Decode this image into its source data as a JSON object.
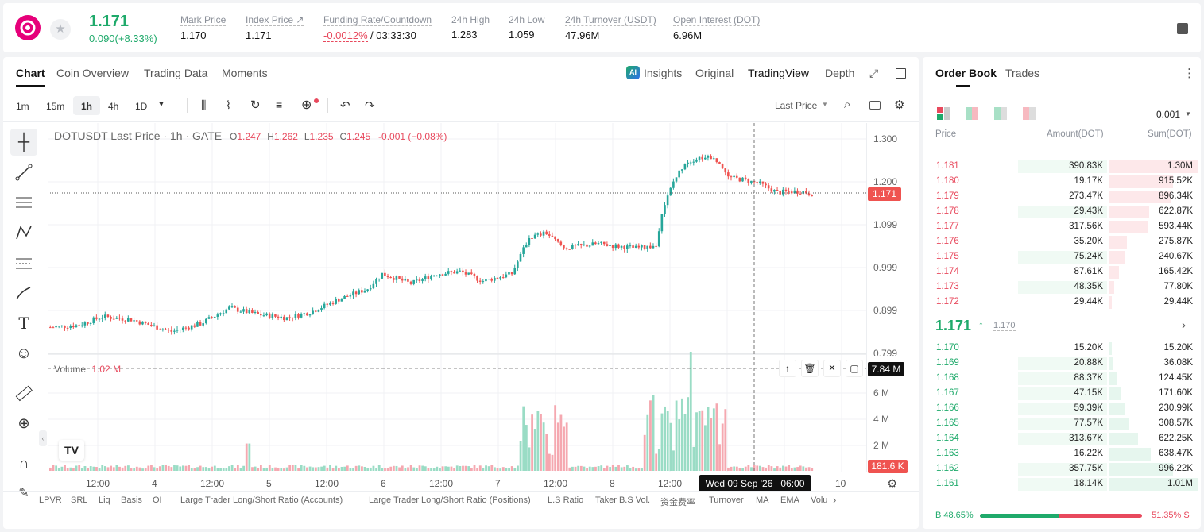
{
  "ticker": {
    "price": "1.171",
    "change": "0.090(+8.33%)",
    "stats": [
      {
        "label": "Mark Price",
        "value": "1.170"
      },
      {
        "label": "Index Price ↗",
        "value": "1.171"
      },
      {
        "label": "Funding Rate/Countdown",
        "value_red": "-0.0012%",
        "value": "/ 03:33:30"
      },
      {
        "label": "24h High",
        "value": "1.283"
      },
      {
        "label": "24h Low",
        "value": "1.059"
      },
      {
        "label": "24h Turnover (USDT)",
        "value": "47.96M"
      },
      {
        "label": "Open Interest (DOT)",
        "value": "6.96M"
      }
    ]
  },
  "chart_tabs": [
    "Chart",
    "Coin Overview",
    "Trading Data",
    "Moments"
  ],
  "view_tabs": {
    "insights": "Insights",
    "original": "Original",
    "tradingview": "TradingView",
    "depth": "Depth"
  },
  "intervals": [
    "1m",
    "15m",
    "1h",
    "4h",
    "1D"
  ],
  "price_type": "Last Price",
  "legend": {
    "symbol": "DOTUSDT Last Price · 1h · GATE",
    "o_label": "O",
    "o": "1.247",
    "h_label": "H",
    "h": "1.262",
    "l_label": "L",
    "l": "1.235",
    "c_label": "C",
    "c": "1.245",
    "chg": "-0.001 (−0.08%)"
  },
  "volume_legend": {
    "label": "Volume",
    "value": "1.02 M"
  },
  "price_axis": [
    "1.300",
    "1.200",
    "1.099",
    "0.999",
    "0.899",
    "0.799"
  ],
  "volume_axis": [
    "6 M",
    "4 M",
    "2 M"
  ],
  "last_price_tag": "1.171",
  "volume_max_tag": "7.84 M",
  "volume_last_tag": "181.6 K",
  "time_axis": [
    "12:00",
    "4",
    "12:00",
    "5",
    "12:00",
    "6",
    "12:00",
    "7",
    "12:00",
    "8",
    "12:00",
    "10"
  ],
  "crosshair_time": "Wed 09 Sep '26   06:00",
  "bottom_indicators": [
    "LPVR",
    "SRL",
    "Liq",
    "Basis",
    "OI",
    "Large Trader Long/Short Ratio (Accounts)",
    "Large Trader Long/Short Ratio (Positions)",
    "L.S Ratio",
    "Taker B.S Vol.",
    "资金费率",
    "Turnover",
    "MA",
    "EMA",
    "Volu"
  ],
  "order_book": {
    "tabs": [
      "Order Book",
      "Trades"
    ],
    "precision": "0.001",
    "headers": {
      "price": "Price",
      "amount": "Amount(DOT)",
      "sum": "Sum(DOT)"
    },
    "asks": [
      {
        "price": "1.181",
        "amount": "390.83K",
        "sum": "1.30M"
      },
      {
        "price": "1.180",
        "amount": "19.17K",
        "sum": "915.52K"
      },
      {
        "price": "1.179",
        "amount": "273.47K",
        "sum": "896.34K"
      },
      {
        "price": "1.178",
        "amount": "29.43K",
        "sum": "622.87K"
      },
      {
        "price": "1.177",
        "amount": "317.56K",
        "sum": "593.44K"
      },
      {
        "price": "1.176",
        "amount": "35.20K",
        "sum": "275.87K"
      },
      {
        "price": "1.175",
        "amount": "75.24K",
        "sum": "240.67K"
      },
      {
        "price": "1.174",
        "amount": "87.61K",
        "sum": "165.42K"
      },
      {
        "price": "1.173",
        "amount": "48.35K",
        "sum": "77.80K"
      },
      {
        "price": "1.172",
        "amount": "29.44K",
        "sum": "29.44K"
      }
    ],
    "mid_price": "1.171",
    "mid_mark": "1.170",
    "bids": [
      {
        "price": "1.170",
        "amount": "15.20K",
        "sum": "15.20K"
      },
      {
        "price": "1.169",
        "amount": "20.88K",
        "sum": "36.08K"
      },
      {
        "price": "1.168",
        "amount": "88.37K",
        "sum": "124.45K"
      },
      {
        "price": "1.167",
        "amount": "47.15K",
        "sum": "171.60K"
      },
      {
        "price": "1.166",
        "amount": "59.39K",
        "sum": "230.99K"
      },
      {
        "price": "1.165",
        "amount": "77.57K",
        "sum": "308.57K"
      },
      {
        "price": "1.164",
        "amount": "313.67K",
        "sum": "622.25K"
      },
      {
        "price": "1.163",
        "amount": "16.22K",
        "sum": "638.47K"
      },
      {
        "price": "1.162",
        "amount": "357.75K",
        "sum": "996.22K"
      },
      {
        "price": "1.161",
        "amount": "18.14K",
        "sum": "1.01M"
      }
    ],
    "buy_ratio": "B 48.65%",
    "sell_ratio": "51.35% S",
    "buy_pct": 48.65
  },
  "colors": {
    "up": "#26a69a",
    "down": "#ef5350",
    "accent_green": "#1faa6b",
    "accent_red": "#e8495d"
  }
}
